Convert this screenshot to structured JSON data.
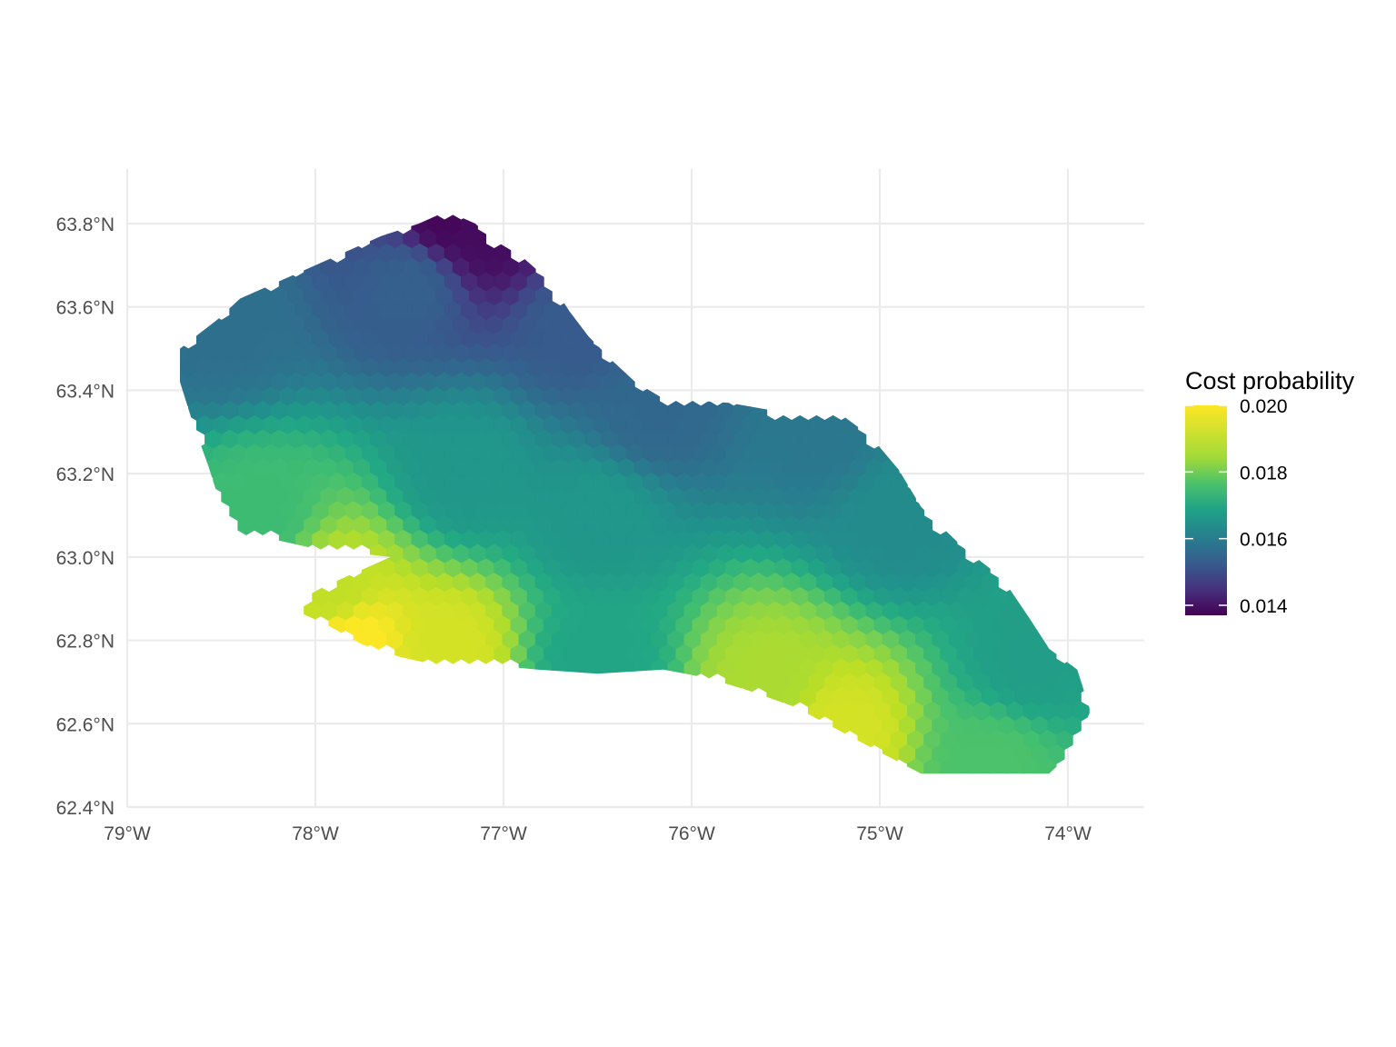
{
  "chart_data": {
    "type": "heatmap",
    "subtype": "hexbin-map",
    "title": "",
    "xlabel": "",
    "ylabel": "",
    "xlim": [
      -79.0,
      -73.6
    ],
    "ylim": [
      62.4,
      63.92
    ],
    "x_ticks": [
      {
        "value": -79,
        "label": "79°W"
      },
      {
        "value": -78,
        "label": "78°W"
      },
      {
        "value": -77,
        "label": "77°W"
      },
      {
        "value": -76,
        "label": "76°W"
      },
      {
        "value": -75,
        "label": "75°W"
      },
      {
        "value": -74,
        "label": "74°W"
      }
    ],
    "y_ticks": [
      {
        "value": 62.4,
        "label": "62.4°N"
      },
      {
        "value": 62.6,
        "label": "62.6°N"
      },
      {
        "value": 62.8,
        "label": "62.8°N"
      },
      {
        "value": 63.0,
        "label": "63.0°N"
      },
      {
        "value": 63.2,
        "label": "63.2°N"
      },
      {
        "value": 63.4,
        "label": "63.4°N"
      },
      {
        "value": 63.6,
        "label": "63.6°N"
      },
      {
        "value": 63.8,
        "label": "63.8°N"
      }
    ],
    "grid": true,
    "colormap": "viridis",
    "legend": {
      "title": "Cost probability",
      "position": "right",
      "range": [
        0.0137,
        0.02
      ],
      "breaks": [
        {
          "value": 0.02,
          "label": "0.020"
        },
        {
          "value": 0.018,
          "label": "0.018"
        },
        {
          "value": 0.016,
          "label": "0.016"
        },
        {
          "value": 0.014,
          "label": "0.014"
        }
      ]
    },
    "region_outline": [
      [
        -78.72,
        63.5
      ],
      [
        -78.52,
        63.57
      ],
      [
        -78.4,
        63.62
      ],
      [
        -78.15,
        63.67
      ],
      [
        -78.0,
        63.7
      ],
      [
        -77.8,
        63.74
      ],
      [
        -77.65,
        63.77
      ],
      [
        -77.45,
        63.8
      ],
      [
        -77.3,
        63.83
      ],
      [
        -77.15,
        63.8
      ],
      [
        -77.05,
        63.76
      ],
      [
        -76.9,
        63.72
      ],
      [
        -76.75,
        63.66
      ],
      [
        -76.65,
        63.59
      ],
      [
        -76.55,
        63.53
      ],
      [
        -76.42,
        63.47
      ],
      [
        -76.3,
        63.42
      ],
      [
        -76.15,
        63.38
      ],
      [
        -75.8,
        63.37
      ],
      [
        -75.55,
        63.35
      ],
      [
        -75.2,
        63.34
      ],
      [
        -75.05,
        63.29
      ],
      [
        -74.9,
        63.21
      ],
      [
        -74.78,
        63.12
      ],
      [
        -74.55,
        63.02
      ],
      [
        -74.35,
        62.95
      ],
      [
        -74.2,
        62.85
      ],
      [
        -74.1,
        62.78
      ],
      [
        -73.95,
        62.73
      ],
      [
        -73.88,
        62.63
      ],
      [
        -73.98,
        62.53
      ],
      [
        -74.1,
        62.48
      ],
      [
        -74.4,
        62.48
      ],
      [
        -74.78,
        62.48
      ],
      [
        -74.95,
        62.52
      ],
      [
        -75.2,
        62.58
      ],
      [
        -75.45,
        62.64
      ],
      [
        -75.7,
        62.68
      ],
      [
        -75.92,
        62.71
      ],
      [
        -76.15,
        62.73
      ],
      [
        -76.5,
        62.72
      ],
      [
        -76.82,
        62.73
      ],
      [
        -77.05,
        62.74
      ],
      [
        -77.35,
        62.74
      ],
      [
        -77.55,
        62.76
      ],
      [
        -77.75,
        62.79
      ],
      [
        -77.95,
        62.84
      ],
      [
        -78.15,
        62.88
      ],
      [
        -77.95,
        62.93
      ],
      [
        -77.75,
        62.97
      ],
      [
        -77.6,
        63.0
      ],
      [
        -78.0,
        63.02
      ],
      [
        -78.2,
        63.04
      ],
      [
        -78.4,
        63.05
      ],
      [
        -78.5,
        63.12
      ],
      [
        -78.57,
        63.22
      ],
      [
        -78.65,
        63.32
      ],
      [
        -78.72,
        63.42
      ]
    ],
    "value_field": {
      "description_points": [
        {
          "lon": -77.3,
          "lat": 63.82,
          "value": 0.0138
        },
        {
          "lon": -77.1,
          "lat": 63.78,
          "value": 0.0139
        },
        {
          "lon": -78.5,
          "lat": 63.55,
          "value": 0.016
        },
        {
          "lon": -77.5,
          "lat": 63.65,
          "value": 0.0156
        },
        {
          "lon": -76.6,
          "lat": 63.55,
          "value": 0.0155
        },
        {
          "lon": -76.2,
          "lat": 63.35,
          "value": 0.0158
        },
        {
          "lon": -75.3,
          "lat": 63.3,
          "value": 0.0162
        },
        {
          "lon": -74.9,
          "lat": 63.1,
          "value": 0.0167
        },
        {
          "lon": -74.2,
          "lat": 62.75,
          "value": 0.0172
        },
        {
          "lon": -74.4,
          "lat": 62.5,
          "value": 0.0182
        },
        {
          "lon": -75.2,
          "lat": 62.58,
          "value": 0.0196
        },
        {
          "lon": -75.6,
          "lat": 62.7,
          "value": 0.0192
        },
        {
          "lon": -76.5,
          "lat": 62.75,
          "value": 0.0174
        },
        {
          "lon": -76.5,
          "lat": 63.1,
          "value": 0.017
        },
        {
          "lon": -77.2,
          "lat": 63.2,
          "value": 0.017
        },
        {
          "lon": -78.3,
          "lat": 63.1,
          "value": 0.018
        },
        {
          "lon": -77.8,
          "lat": 62.8,
          "value": 0.02
        },
        {
          "lon": -77.3,
          "lat": 62.78,
          "value": 0.0196
        },
        {
          "lon": -77.9,
          "lat": 62.92,
          "value": 0.0194
        }
      ]
    }
  }
}
